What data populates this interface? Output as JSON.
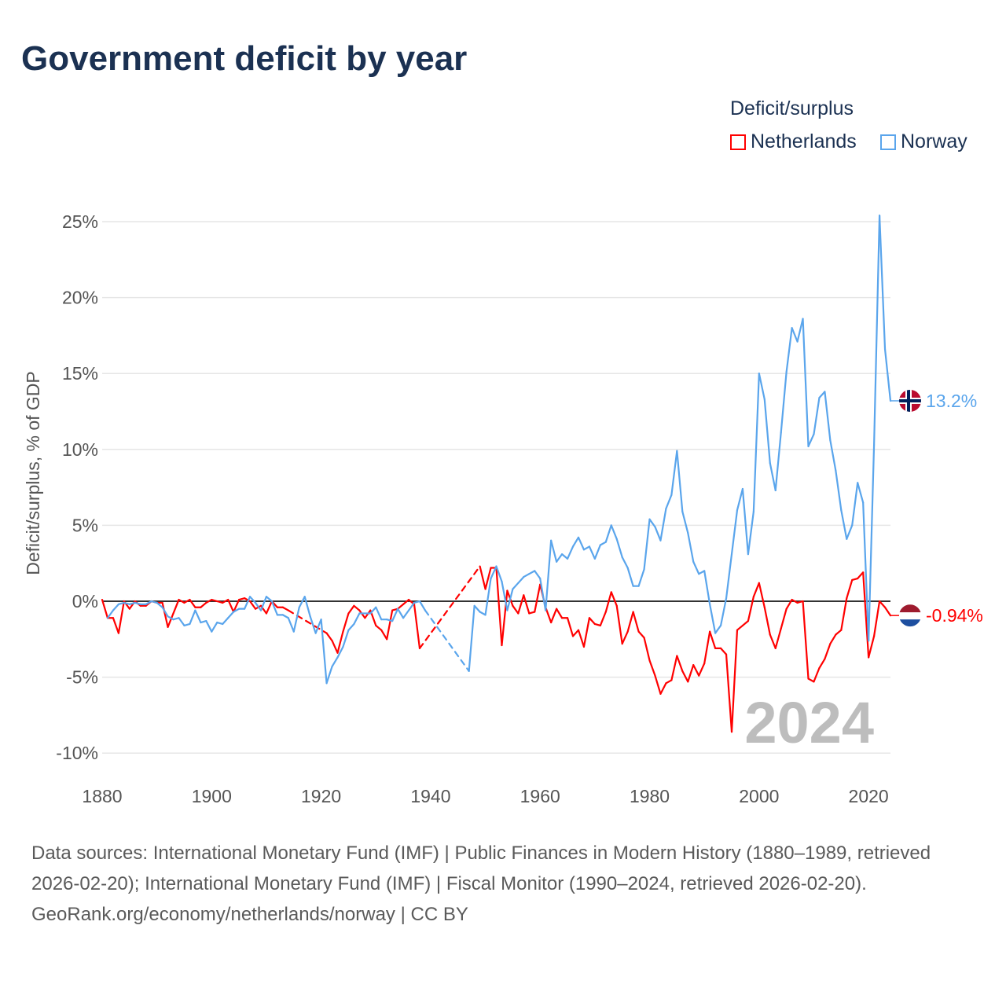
{
  "title": "Government deficit by year",
  "legend": {
    "title": "Deficit/surplus",
    "items": [
      {
        "label": "Netherlands",
        "color": "#ff0000"
      },
      {
        "label": "Norway",
        "color": "#5aa5ec"
      }
    ]
  },
  "footer": {
    "sources": "Data sources: International Monetary Fund (IMF) | Public Finances in Modern History (1880–1989, retrieved 2026-02-20); International Monetary Fund (IMF) | Fiscal Monitor (1990–2024, retrieved 2026-02-20).",
    "credit": "GeoRank.org/economy/netherlands/norway | CC BY"
  },
  "chart_data": {
    "type": "line",
    "title": "Government deficit by year",
    "xlabel": "",
    "ylabel": "Deficit/surplus, % of GDP",
    "xlim": [
      1880,
      2024
    ],
    "ylim": [
      -10,
      25
    ],
    "x_ticks": [
      1880,
      1900,
      1920,
      1940,
      1960,
      1980,
      2000,
      2020
    ],
    "x_tick_labels": [
      "1880",
      "1900",
      "1920",
      "1940",
      "1960",
      "1980",
      "2000",
      "2020"
    ],
    "y_ticks": [
      25,
      20,
      15,
      10,
      5,
      0,
      -5,
      -10
    ],
    "y_tick_labels": [
      "25%",
      "20%",
      "15%",
      "10%",
      "5%",
      "0%",
      "-5%",
      "-10%"
    ],
    "grid": true,
    "legend_position": "top-right",
    "year_watermark": "2024",
    "x_start": 1880,
    "series": [
      {
        "name": "Netherlands",
        "color": "#ff0000",
        "end_label": "-0.94%",
        "flag": "netherlands-flag",
        "values": [
          0.1,
          -1.1,
          -1.1,
          -2.1,
          0,
          -0.5,
          0,
          -0.3,
          -0.3,
          0,
          -0.1,
          -0.1,
          -1.7,
          -0.8,
          0.1,
          -0.1,
          0.1,
          -0.4,
          -0.4,
          -0.1,
          0.1,
          0,
          -0.1,
          0.1,
          -0.7,
          0.1,
          0.2,
          0,
          -0.5,
          -0.3,
          -0.8,
          0,
          -0.4,
          -0.4,
          -0.6,
          null,
          null,
          null,
          null,
          null,
          null,
          -2.1,
          -2.6,
          -3.4,
          -2.0,
          -0.8,
          -0.3,
          -0.6,
          -1.1,
          -0.6,
          -1.6,
          -1.9,
          -2.5,
          -0.6,
          -0.5,
          -0.2,
          0.1,
          -0.2,
          -3.1,
          null,
          null,
          null,
          null,
          null,
          null,
          null,
          null,
          null,
          null,
          2.3,
          0.8,
          2.2,
          2.2,
          -2.9,
          0.7,
          -0.3,
          -0.8,
          0.4,
          -0.8,
          -0.7,
          1.1,
          -0.4,
          -1.4,
          -0.5,
          -1.1,
          -1.1,
          -2.3,
          -1.9,
          -3.0,
          -1.1,
          -1.5,
          -1.6,
          -0.7,
          0.6,
          -0.3,
          -2.8,
          -2.0,
          -0.7,
          -2.0,
          -2.4,
          -3.9,
          -4.9,
          -6.1,
          -5.4,
          -5.2,
          -3.6,
          -4.6,
          -5.3,
          -4.2,
          -4.9,
          -4.1,
          -2.0,
          -3.1,
          -3.1,
          -3.5,
          -8.6,
          -1.9,
          -1.6,
          -1.3,
          0.3,
          1.2,
          -0.4,
          -2.2,
          -3.1,
          -1.8,
          -0.5,
          0.1,
          -0.1,
          0,
          -5.1,
          -5.3,
          -4.4,
          -3.8,
          -2.8,
          -2.2,
          -1.9,
          0.2,
          1.4,
          1.5,
          1.9,
          -3.7,
          -2.3,
          0,
          -0.4,
          -0.94
        ]
      },
      {
        "name": "Norway",
        "color": "#5aa5ec",
        "end_label": "13.2%",
        "flag": "norway-flag",
        "values": [
          null,
          -1.1,
          -0.6,
          -0.2,
          -0.1,
          -0.2,
          -0.1,
          -0.2,
          -0.2,
          0,
          -0.1,
          -0.4,
          -1.0,
          -1.2,
          -1.1,
          -1.6,
          -1.5,
          -0.6,
          -1.4,
          -1.3,
          -2.0,
          -1.4,
          -1.5,
          -1.1,
          -0.7,
          -0.5,
          -0.5,
          0.3,
          -0.1,
          -0.6,
          0.3,
          0,
          -0.9,
          -0.9,
          -1.1,
          -2.0,
          -0.4,
          0.3,
          -1.0,
          -2.1,
          -1.2,
          -5.4,
          -4.3,
          -3.7,
          -3.0,
          -1.9,
          -1.5,
          -0.8,
          -0.8,
          -0.8,
          -0.4,
          -1.2,
          -1.2,
          -1.3,
          -0.5,
          -1.1,
          -0.6,
          -0.1,
          0,
          -0.6,
          null,
          null,
          null,
          null,
          null,
          null,
          null,
          -4.6,
          -0.3,
          -0.7,
          -0.9,
          1.5,
          2.3,
          1.3,
          -0.6,
          0.8,
          1.2,
          1.6,
          1.8,
          2.0,
          1.5,
          -0.6,
          4.0,
          2.6,
          3.1,
          2.8,
          3.6,
          4.2,
          3.4,
          3.6,
          2.8,
          3.7,
          3.9,
          5.0,
          4.1,
          2.9,
          2.2,
          1.0,
          1.0,
          2.1,
          5.4,
          4.9,
          4.0,
          6.1,
          7.0,
          9.9,
          5.9,
          4.5,
          2.6,
          1.8,
          2.0,
          -0.2,
          -2.1,
          -1.6,
          0.2,
          3.1,
          6.0,
          7.4,
          3.1,
          5.9,
          15.0,
          13.3,
          9.1,
          7.3,
          11.1,
          15.1,
          18.0,
          17.1,
          18.6,
          10.2,
          11.0,
          13.4,
          13.8,
          10.6,
          8.6,
          6.0,
          4.1,
          5.0,
          7.8,
          6.5,
          -2.6,
          10.3,
          25.4,
          16.6,
          13.2
        ]
      }
    ]
  }
}
